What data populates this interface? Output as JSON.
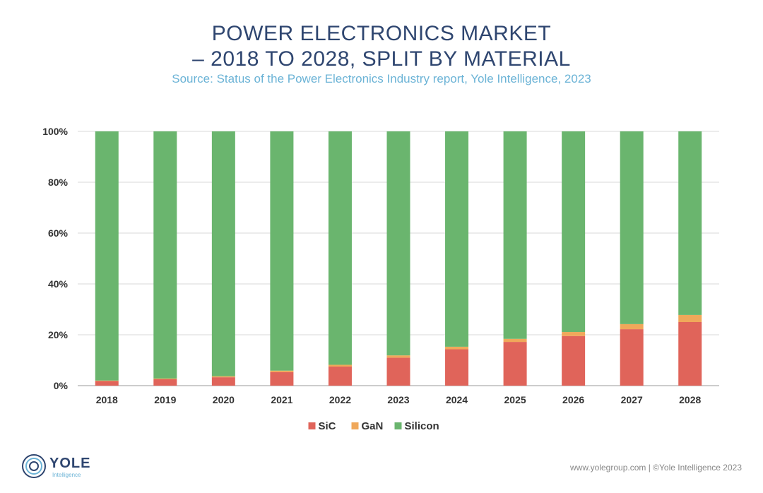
{
  "header": {
    "title_line1": "POWER ELECTRONICS MARKET",
    "title_line2": "– 2018 TO 2028, SPLIT BY MATERIAL",
    "subtitle": "Source: Status of the Power Electronics Industry report, Yole Intelligence, 2023"
  },
  "chart_data": {
    "type": "bar",
    "stacked": true,
    "categories": [
      "2018",
      "2019",
      "2020",
      "2021",
      "2022",
      "2023",
      "2024",
      "2025",
      "2026",
      "2027",
      "2028"
    ],
    "series": [
      {
        "name": "SiC",
        "color": "#e0645a",
        "values": [
          1.8,
          2.5,
          3.3,
          5.3,
          7.5,
          11.0,
          14.3,
          17.2,
          19.5,
          22.2,
          25.0
        ]
      },
      {
        "name": "GaN",
        "color": "#f0a85a",
        "values": [
          0.2,
          0.3,
          0.4,
          0.6,
          0.7,
          0.9,
          1.0,
          1.2,
          1.6,
          2.0,
          2.8
        ]
      },
      {
        "name": "Silicon",
        "color": "#6ab56e",
        "values": [
          98.0,
          97.2,
          96.3,
          94.1,
          91.8,
          88.1,
          84.7,
          81.6,
          78.9,
          75.8,
          72.2
        ]
      }
    ],
    "ylim": [
      0,
      100
    ],
    "yticks": [
      0,
      20,
      40,
      60,
      80,
      100
    ],
    "ytick_labels": [
      "0%",
      "20%",
      "40%",
      "60%",
      "80%",
      "100%"
    ],
    "grid": true,
    "legend_position": "bottom"
  },
  "brand": {
    "logo_word": "YOLE",
    "logo_sub": "Intelligence",
    "footer": "www.yolegroup.com | ©Yole Intelligence 2023"
  }
}
